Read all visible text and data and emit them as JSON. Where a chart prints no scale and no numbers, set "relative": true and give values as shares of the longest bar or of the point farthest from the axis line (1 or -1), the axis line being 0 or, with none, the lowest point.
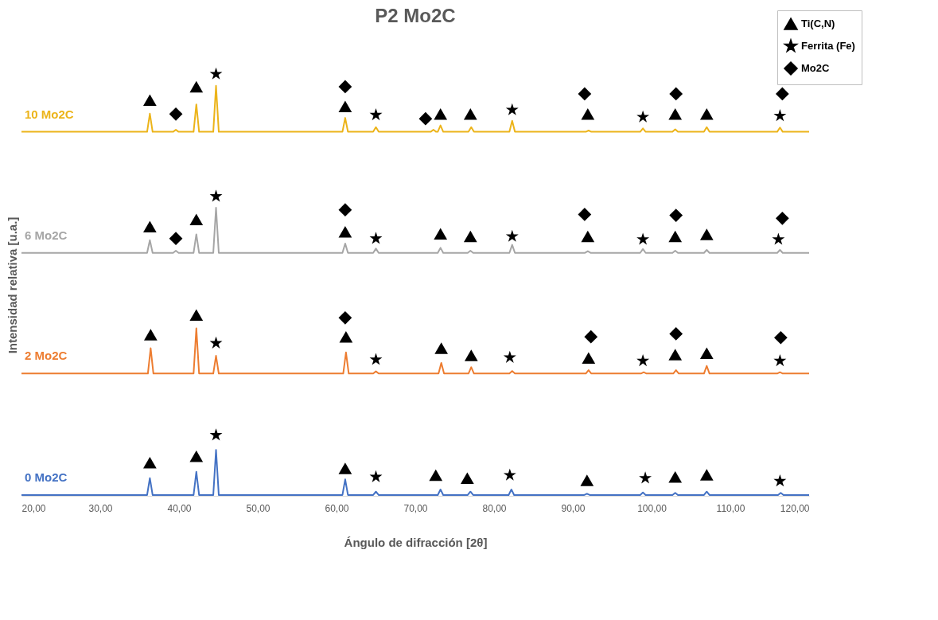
{
  "chart_data": {
    "type": "line",
    "title": "P2 Mo2C",
    "xlabel": "Ángulo de difracción [2θ]",
    "ylabel": "Intensidad relativa [u.a.]",
    "relative": true,
    "grid": false,
    "legend": "top right",
    "xlim": [
      20,
      120
    ],
    "xticks": [
      {
        "value": 20,
        "label": "20,00"
      },
      {
        "value": 30,
        "label": "30,00"
      },
      {
        "value": 40,
        "label": "40,00"
      },
      {
        "value": 50,
        "label": "50,00"
      },
      {
        "value": 60,
        "label": "60,00"
      },
      {
        "value": 70,
        "label": "70,00"
      },
      {
        "value": 80,
        "label": "80,00"
      },
      {
        "value": 90,
        "label": "90,00"
      },
      {
        "value": 100,
        "label": "100,00"
      },
      {
        "value": 110,
        "label": "110,00"
      },
      {
        "value": 120,
        "label": "120,00"
      }
    ],
    "series": [
      {
        "name": "10 Mo2C",
        "color": "#ecb41a",
        "marker": "none",
        "x": [
          20,
          35.95,
          36.3,
          36.65,
          39.25,
          39.6,
          39.95,
          41.85,
          42.2,
          42.55,
          44.35,
          44.7,
          45.05,
          60.75,
          61.1,
          61.45,
          64.65,
          65,
          65.35,
          71.95,
          72.3,
          72.65,
          72.85,
          73.2,
          73.55,
          76.75,
          77.1,
          77.45,
          81.95,
          82.3,
          82.65,
          91.65,
          92,
          92.35,
          98.55,
          98.9,
          99.25,
          102.65,
          103,
          103.35,
          106.65,
          107,
          107.35,
          115.95,
          116.3,
          116.65,
          120
        ],
        "values": [
          0.863,
          0.863,
          0.906,
          0.863,
          0.863,
          0.868,
          0.863,
          0.863,
          0.928,
          0.863,
          0.863,
          0.972,
          0.863,
          0.863,
          0.896,
          0.863,
          0.863,
          0.874,
          0.863,
          0.863,
          0.868,
          0.863,
          0.863,
          0.878,
          0.863,
          0.863,
          0.874,
          0.863,
          0.863,
          0.889,
          0.863,
          0.863,
          0.866,
          0.863,
          0.863,
          0.871,
          0.863,
          0.863,
          0.869,
          0.863,
          0.863,
          0.874,
          0.863,
          0.863,
          0.873,
          0.863,
          0.863
        ]
      },
      {
        "name": "6 Mo2C",
        "color": "#a6a6a6",
        "marker": "none",
        "x": [
          20,
          35.95,
          36.3,
          36.65,
          39.25,
          39.6,
          39.95,
          41.85,
          42.2,
          42.55,
          44.35,
          44.7,
          45.05,
          60.75,
          61.1,
          61.45,
          64.65,
          65,
          65.35,
          72.85,
          73.2,
          73.55,
          76.65,
          77,
          77.35,
          81.95,
          82.3,
          82.65,
          91.55,
          91.9,
          92.25,
          98.55,
          98.9,
          99.25,
          102.65,
          103,
          103.35,
          106.65,
          107,
          107.35,
          115.95,
          116.3,
          116.65,
          120
        ],
        "values": [
          0.576,
          0.576,
          0.606,
          0.576,
          0.576,
          0.581,
          0.576,
          0.576,
          0.62,
          0.576,
          0.576,
          0.683,
          0.576,
          0.576,
          0.598,
          0.576,
          0.576,
          0.586,
          0.576,
          0.576,
          0.588,
          0.576,
          0.576,
          0.581,
          0.576,
          0.576,
          0.595,
          0.576,
          0.576,
          0.58,
          0.576,
          0.576,
          0.585,
          0.576,
          0.576,
          0.581,
          0.576,
          0.576,
          0.583,
          0.576,
          0.576,
          0.583,
          0.576,
          0.576
        ]
      },
      {
        "name": "2 Mo2C",
        "color": "#ed7d31",
        "marker": "none",
        "x": [
          20,
          36.05,
          36.4,
          36.75,
          41.85,
          42.2,
          42.55,
          44.35,
          44.7,
          45.05,
          60.85,
          61.2,
          61.55,
          64.65,
          65,
          65.35,
          72.95,
          73.3,
          73.65,
          76.75,
          77.1,
          77.45,
          81.95,
          82.3,
          82.65,
          91.65,
          92,
          92.35,
          98.65,
          99,
          99.35,
          102.75,
          103.1,
          103.45,
          106.65,
          107,
          107.35,
          115.95,
          116.3,
          116.65,
          120
        ],
        "values": [
          0.29,
          0.29,
          0.35,
          0.29,
          0.29,
          0.397,
          0.29,
          0.29,
          0.332,
          0.29,
          0.29,
          0.34,
          0.29,
          0.29,
          0.295,
          0.29,
          0.29,
          0.315,
          0.29,
          0.29,
          0.305,
          0.29,
          0.29,
          0.296,
          0.29,
          0.29,
          0.298,
          0.29,
          0.29,
          0.293,
          0.29,
          0.29,
          0.298,
          0.29,
          0.29,
          0.308,
          0.29,
          0.29,
          0.293,
          0.29,
          0.29
        ]
      },
      {
        "name": "0 Mo2C",
        "color": "#4472c4",
        "marker": "none",
        "x": [
          20,
          35.95,
          36.3,
          36.65,
          41.85,
          42.2,
          42.55,
          44.35,
          44.7,
          45.05,
          60.75,
          61.1,
          61.45,
          64.65,
          65,
          65.35,
          72.85,
          73.2,
          73.55,
          76.65,
          77,
          77.35,
          81.85,
          82.2,
          82.55,
          91.45,
          91.8,
          92.15,
          98.55,
          98.9,
          99.25,
          102.65,
          103,
          103.35,
          106.65,
          107,
          107.35,
          116.05,
          116.4,
          116.75,
          120
        ],
        "values": [
          0.002,
          0.002,
          0.042,
          0.002,
          0.002,
          0.057,
          0.002,
          0.002,
          0.109,
          0.002,
          0.002,
          0.039,
          0.002,
          0.002,
          0.01,
          0.002,
          0.002,
          0.015,
          0.002,
          0.002,
          0.01,
          0.002,
          0.002,
          0.015,
          0.002,
          0.002,
          0.005,
          0.002,
          0.002,
          0.008,
          0.002,
          0.002,
          0.007,
          0.002,
          0.002,
          0.01,
          0.002,
          0.002,
          0.007,
          0.002,
          0.002
        ]
      },
      {
        "name": "Ti(C,N)",
        "color": "#000000",
        "type": "scatter",
        "marker": "triangle",
        "x": [
          36.3,
          42.2,
          61.1,
          73.2,
          77,
          91.9,
          103,
          107,
          36.3,
          42.2,
          61.1,
          73.2,
          77,
          91.9,
          103,
          107,
          36.4,
          42.2,
          61.2,
          73.3,
          77.1,
          92,
          103,
          107,
          36.3,
          42.2,
          61.1,
          72.6,
          76.6,
          91.8,
          103,
          107
        ],
        "values": [
          0.938,
          0.97,
          0.923,
          0.905,
          0.905,
          0.905,
          0.905,
          0.905,
          0.638,
          0.655,
          0.626,
          0.621,
          0.615,
          0.615,
          0.615,
          0.62,
          0.382,
          0.429,
          0.377,
          0.35,
          0.333,
          0.327,
          0.335,
          0.338,
          0.079,
          0.094,
          0.065,
          0.049,
          0.042,
          0.037,
          0.045,
          0.05
        ]
      },
      {
        "name": "Ferrita (Fe)",
        "color": "#000000",
        "type": "scatter",
        "marker": "star",
        "x": [
          44.7,
          65,
          82.3,
          98.9,
          116.3,
          44.7,
          65,
          82.3,
          98.9,
          116.1,
          44.7,
          65,
          82,
          98.9,
          116.3,
          44.7,
          65,
          82,
          99.2,
          116.3
        ],
        "values": [
          1.0,
          0.903,
          0.915,
          0.898,
          0.901,
          0.71,
          0.61,
          0.615,
          0.608,
          0.608,
          0.362,
          0.323,
          0.328,
          0.32,
          0.32,
          0.144,
          0.045,
          0.049,
          0.042,
          0.035
        ]
      },
      {
        "name": "Mo2C",
        "color": "#000000",
        "type": "scatter",
        "marker": "diamond",
        "x": [
          39.6,
          61.1,
          71.3,
          91.5,
          103.1,
          116.6,
          39.6,
          61.1,
          91.5,
          103.1,
          116.6,
          61.1,
          92.3,
          103.1,
          116.4
        ],
        "values": [
          0.905,
          0.97,
          0.894,
          0.953,
          0.953,
          0.953,
          0.61,
          0.678,
          0.667,
          0.665,
          0.658,
          0.422,
          0.377,
          0.384,
          0.375
        ]
      }
    ]
  }
}
